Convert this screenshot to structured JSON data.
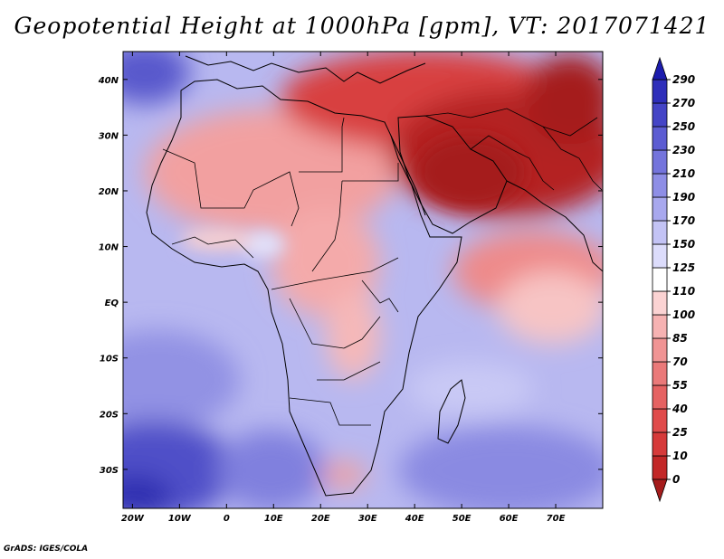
{
  "title": "Geopotential Height at 1000hPa [gpm], VT: 2017071421",
  "credit": "GrADS: IGES/COLA",
  "map": {
    "lon_range": [
      -22,
      80
    ],
    "lat_range": [
      -37,
      45
    ],
    "lon_ticks": [
      {
        "value": -20,
        "label": "20W"
      },
      {
        "value": -10,
        "label": "10W"
      },
      {
        "value": 0,
        "label": "0"
      },
      {
        "value": 10,
        "label": "10E"
      },
      {
        "value": 20,
        "label": "20E"
      },
      {
        "value": 30,
        "label": "30E"
      },
      {
        "value": 40,
        "label": "40E"
      },
      {
        "value": 50,
        "label": "50E"
      },
      {
        "value": 60,
        "label": "60E"
      },
      {
        "value": 70,
        "label": "70E"
      }
    ],
    "lat_ticks": [
      {
        "value": 40,
        "label": "40N"
      },
      {
        "value": 30,
        "label": "30N"
      },
      {
        "value": 20,
        "label": "20N"
      },
      {
        "value": 10,
        "label": "10N"
      },
      {
        "value": 0,
        "label": "EQ"
      },
      {
        "value": -10,
        "label": "10S"
      },
      {
        "value": -20,
        "label": "20S"
      },
      {
        "value": -30,
        "label": "30S"
      }
    ]
  },
  "colorbar": {
    "levels": [
      "0",
      "10",
      "25",
      "40",
      "55",
      "70",
      "85",
      "100",
      "110",
      "125",
      "150",
      "170",
      "190",
      "210",
      "230",
      "250",
      "270",
      "290"
    ],
    "colors": [
      "#a51c1c",
      "#c22727",
      "#d63a3a",
      "#e04b4b",
      "#e56262",
      "#ea7979",
      "#f09494",
      "#f6b2b2",
      "#fbd3d3",
      "#ffffff",
      "#dcdcfb",
      "#c3c3f5",
      "#a8a8ee",
      "#8e8ee6",
      "#7474dc",
      "#5c5cd2",
      "#4444c6",
      "#2e2eba",
      "#1c1cad"
    ]
  }
}
